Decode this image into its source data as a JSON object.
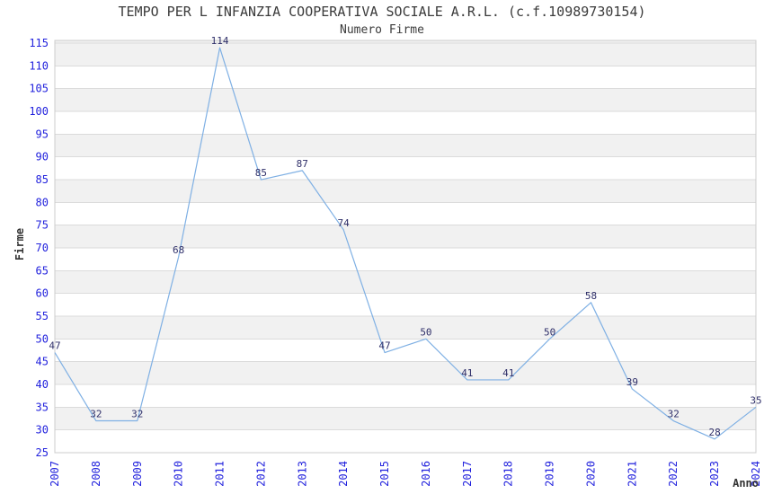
{
  "chart_data": {
    "type": "line",
    "title": "TEMPO PER L INFANZIA COOPERATIVA SOCIALE A.R.L. (c.f.10989730154)",
    "subtitle": "Numero Firme",
    "xlabel": "Anno",
    "ylabel": "Firme",
    "categories": [
      "2007",
      "2008",
      "2009",
      "2010",
      "2011",
      "2012",
      "2013",
      "2014",
      "2015",
      "2016",
      "2017",
      "2018",
      "2019",
      "2020",
      "2021",
      "2022",
      "2023",
      "2024"
    ],
    "series": [
      {
        "name": "Numero Firme",
        "values": [
          47,
          32,
          32,
          68,
          114,
          85,
          87,
          74,
          47,
          50,
          41,
          41,
          50,
          58,
          39,
          32,
          28,
          35
        ]
      }
    ],
    "point_labels": true,
    "grid": true,
    "legend": "none",
    "ylim": [
      25,
      115.6
    ],
    "yticks": [
      25,
      30,
      35,
      40,
      45,
      50,
      55,
      60,
      65,
      70,
      75,
      80,
      85,
      90,
      95,
      100,
      105,
      110,
      115
    ],
    "stripe_bands_gray": "every [10k, 10k+5] interval, topmost band extends to plot top",
    "colors": {
      "line": "#7fb0e4",
      "tick_label": "#2222dd",
      "point_label": "#30306a",
      "stripe": "#f1f1f1",
      "grid": "#dbdbdb",
      "border": "#cccccc",
      "text": "#3b3b3b"
    }
  }
}
